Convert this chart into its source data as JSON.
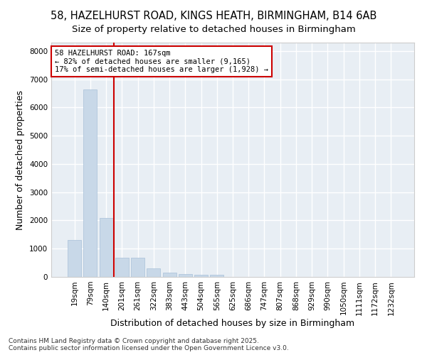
{
  "title_line1": "58, HAZELHURST ROAD, KINGS HEATH, BIRMINGHAM, B14 6AB",
  "title_line2": "Size of property relative to detached houses in Birmingham",
  "xlabel": "Distribution of detached houses by size in Birmingham",
  "ylabel": "Number of detached properties",
  "categories": [
    "19sqm",
    "79sqm",
    "140sqm",
    "201sqm",
    "261sqm",
    "322sqm",
    "383sqm",
    "443sqm",
    "504sqm",
    "565sqm",
    "625sqm",
    "686sqm",
    "747sqm",
    "807sqm",
    "868sqm",
    "929sqm",
    "990sqm",
    "1050sqm",
    "1111sqm",
    "1172sqm",
    "1232sqm"
  ],
  "values": [
    1320,
    6630,
    2090,
    680,
    670,
    295,
    155,
    100,
    65,
    65,
    0,
    0,
    0,
    0,
    0,
    0,
    0,
    0,
    0,
    0,
    0
  ],
  "bar_color": "#c8d8e8",
  "bar_edge_color": "#a8c0d8",
  "vline_color": "#cc0000",
  "annotation_box_text": "58 HAZELHURST ROAD: 167sqm\n← 82% of detached houses are smaller (9,165)\n17% of semi-detached houses are larger (1,928) →",
  "box_edge_color": "#cc0000",
  "ylim": [
    0,
    8300
  ],
  "yticks": [
    0,
    1000,
    2000,
    3000,
    4000,
    5000,
    6000,
    7000,
    8000
  ],
  "axes_bg_color": "#e8eef4",
  "fig_bg_color": "#ffffff",
  "grid_color": "#ffffff",
  "footer_line1": "Contains HM Land Registry data © Crown copyright and database right 2025.",
  "footer_line2": "Contains public sector information licensed under the Open Government Licence v3.0.",
  "title_fontsize": 10.5,
  "subtitle_fontsize": 9.5,
  "axis_label_fontsize": 9,
  "tick_fontsize": 7.5,
  "annotation_fontsize": 7.5,
  "footer_fontsize": 6.5
}
